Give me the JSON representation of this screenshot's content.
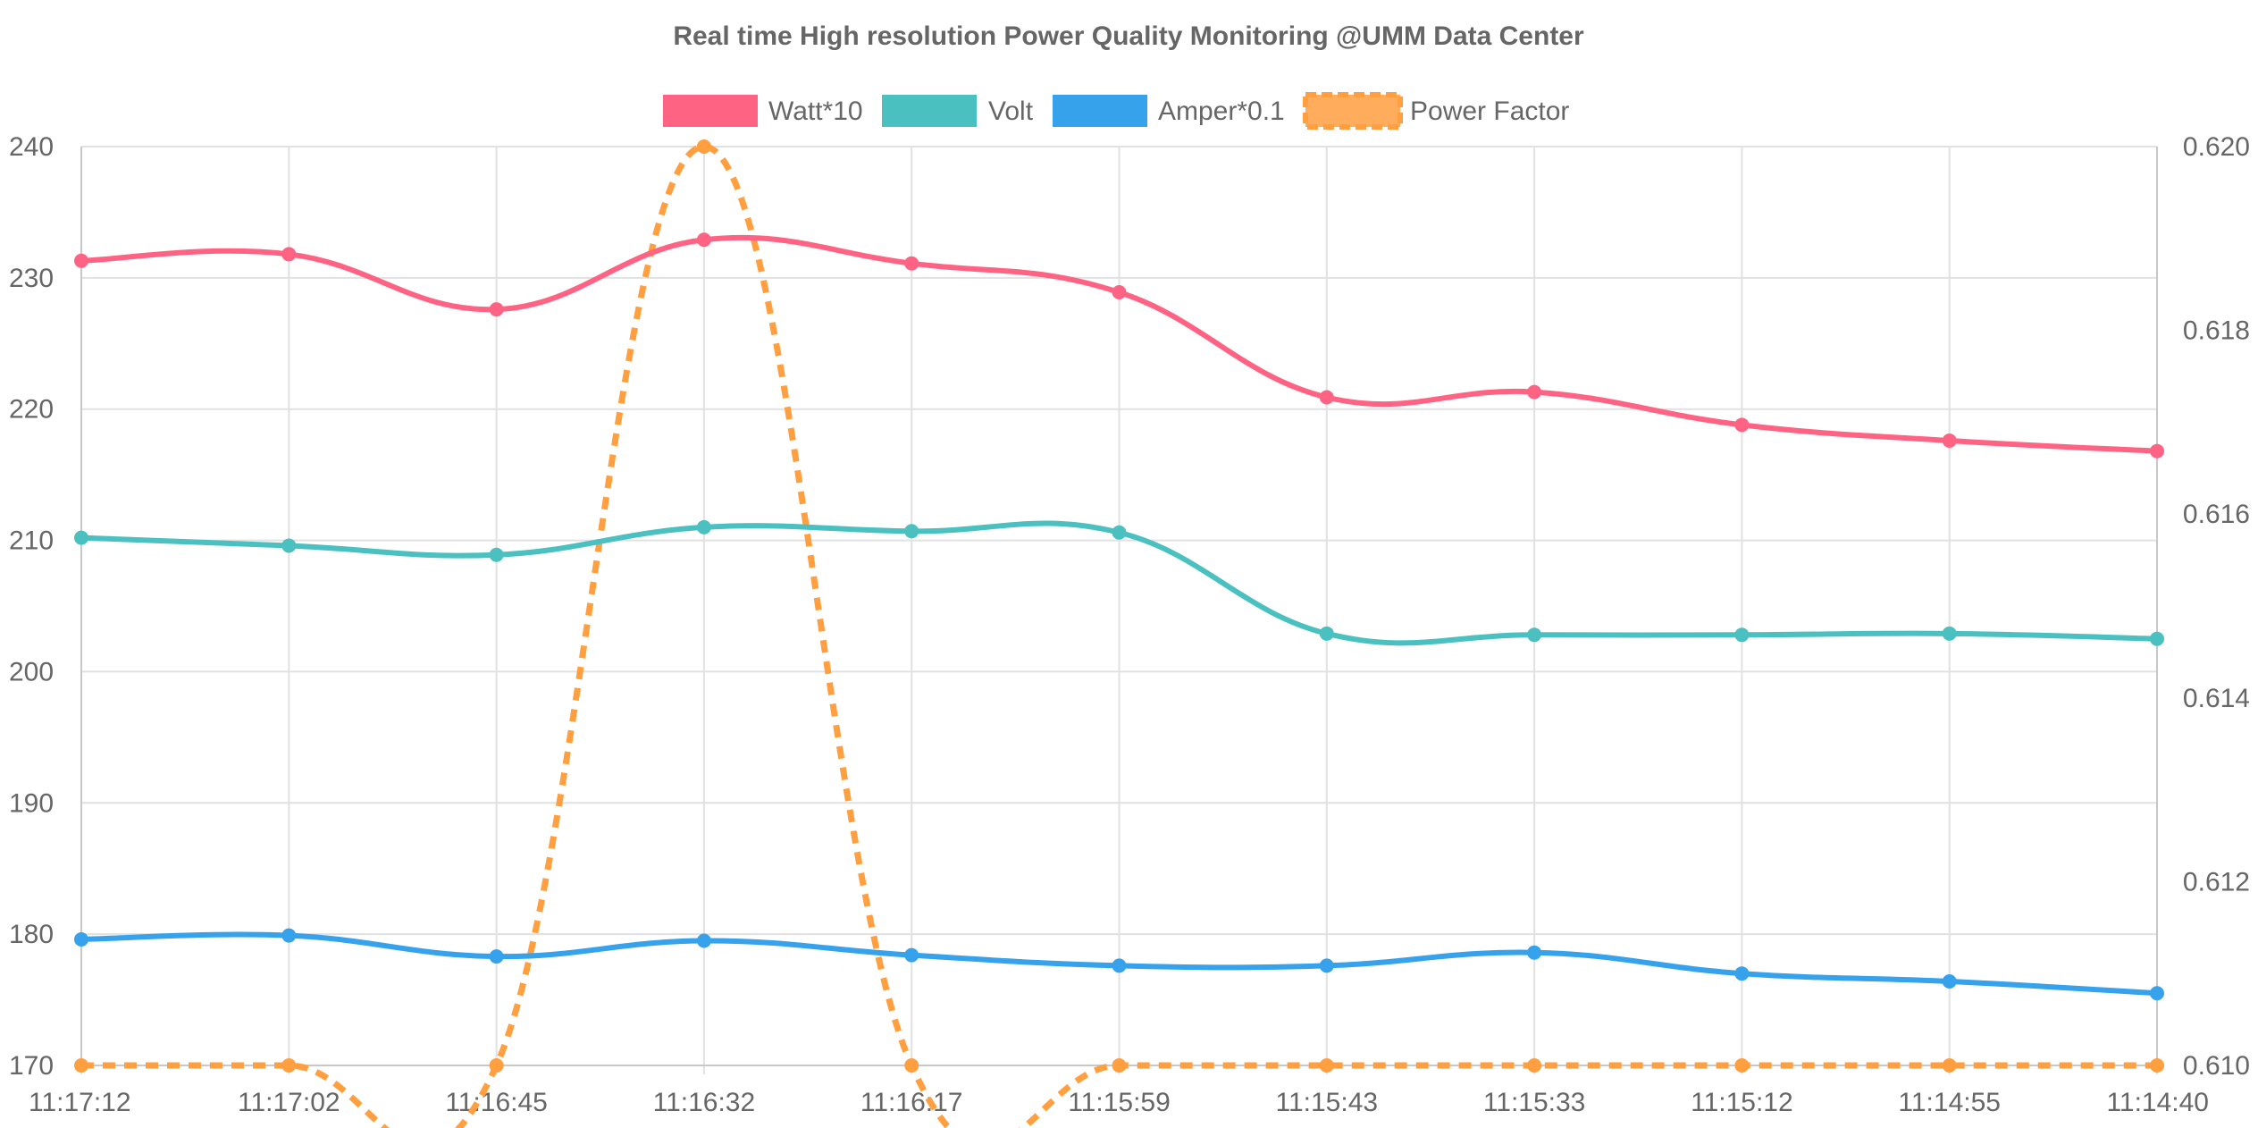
{
  "chart_data": {
    "type": "line",
    "title": "Real time High resolution Power Quality Monitoring @UMM Data Center",
    "categories": [
      "11:17:12",
      "11:17:02",
      "11:16:45",
      "11:16:32",
      "11:16:17",
      "11:15:59",
      "11:15:43",
      "11:15:33",
      "11:15:12",
      "11:14:55",
      "11:14:40"
    ],
    "y_left": {
      "min": 170,
      "max": 240,
      "ticks": [
        170,
        180,
        190,
        200,
        210,
        220,
        230,
        240
      ]
    },
    "y_right": {
      "min": 0.61,
      "max": 0.62,
      "ticks": [
        "0.610",
        "0.612",
        "0.614",
        "0.616",
        "0.618",
        "0.620"
      ]
    },
    "grid": true,
    "legend_position": "top-center",
    "series": [
      {
        "name": "Watt*10",
        "axis": "left",
        "color": "#ff6384",
        "dashed": false,
        "values": [
          231.3,
          231.8,
          227.6,
          232.9,
          231.1,
          228.9,
          220.9,
          221.3,
          218.8,
          217.6,
          216.8
        ]
      },
      {
        "name": "Volt",
        "axis": "left",
        "color": "#4bc0c0",
        "dashed": false,
        "values": [
          210.2,
          209.6,
          208.9,
          211.0,
          210.7,
          210.6,
          202.9,
          202.8,
          202.8,
          202.9,
          202.5
        ]
      },
      {
        "name": "Amper*0.1",
        "axis": "left",
        "color": "#36a2eb",
        "dashed": false,
        "values": [
          179.6,
          179.9,
          178.3,
          179.5,
          178.4,
          177.6,
          177.6,
          178.6,
          177.0,
          176.4,
          175.5
        ]
      },
      {
        "name": "Power Factor",
        "axis": "right",
        "color": "#ff9f40",
        "dashed": true,
        "values": [
          0.61,
          0.61,
          0.61,
          0.62,
          0.61,
          0.61,
          0.61,
          0.61,
          0.61,
          0.61,
          0.61
        ]
      }
    ]
  }
}
